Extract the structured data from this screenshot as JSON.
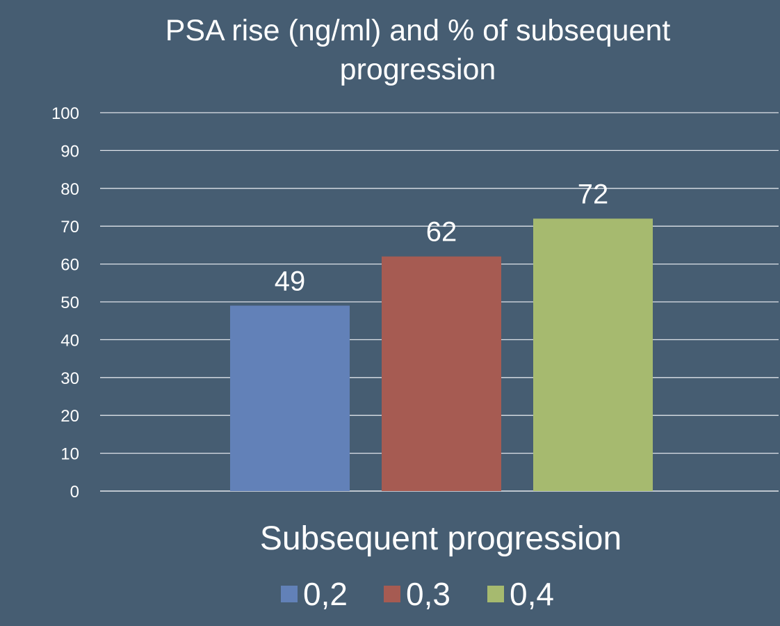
{
  "chart_data": {
    "type": "bar",
    "title_lines": [
      "PSA rise (ng/ml) and % of subsequent",
      "progression"
    ],
    "xlabel": "Subsequent progression",
    "ylabel": "",
    "category": "Subsequent progression",
    "ylim": [
      0,
      100
    ],
    "yticks": [
      "0",
      "10",
      "20",
      "30",
      "40",
      "50",
      "60",
      "70",
      "80",
      "90",
      "100"
    ],
    "grid": true,
    "legend_position": "bottom",
    "series": [
      {
        "name": "0,2",
        "values": [
          49
        ],
        "color": "#6281b8",
        "value_label": "49"
      },
      {
        "name": "0,3",
        "values": [
          62
        ],
        "color": "#a65b52",
        "value_label": "62"
      },
      {
        "name": "0,4",
        "values": [
          72
        ],
        "color": "#a6ba6f",
        "value_label": "72"
      }
    ]
  }
}
